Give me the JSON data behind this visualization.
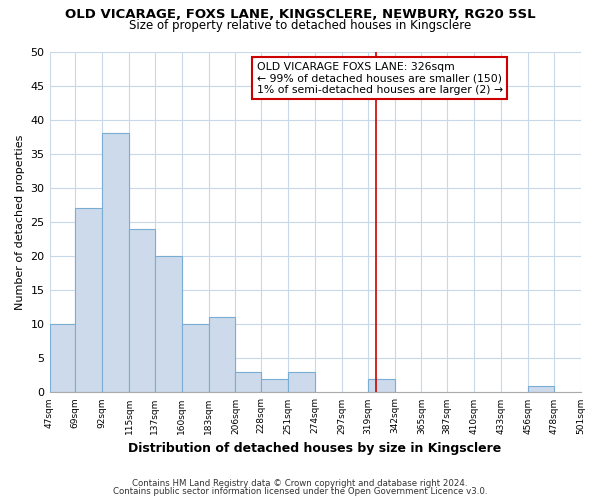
{
  "title1": "OLD VICARAGE, FOXS LANE, KINGSCLERE, NEWBURY, RG20 5SL",
  "title2": "Size of property relative to detached houses in Kingsclere",
  "xlabel": "Distribution of detached houses by size in Kingsclere",
  "ylabel": "Number of detached properties",
  "bar_edges": [
    47,
    69,
    92,
    115,
    137,
    160,
    183,
    206,
    228,
    251,
    274,
    297,
    319,
    342,
    365,
    387,
    410,
    433,
    456,
    478,
    501
  ],
  "bar_heights": [
    10,
    27,
    38,
    24,
    20,
    10,
    11,
    3,
    2,
    3,
    0,
    0,
    2,
    0,
    0,
    0,
    0,
    0,
    1,
    0
  ],
  "bar_color": "#cddaeb",
  "bar_edgecolor": "#7aadd4",
  "vline_x": 326,
  "vline_color": "#cc0000",
  "annotation_title": "OLD VICARAGE FOXS LANE: 326sqm",
  "annotation_line1": "← 99% of detached houses are smaller (150)",
  "annotation_line2": "1% of semi-detached houses are larger (2) →",
  "ylim": [
    0,
    50
  ],
  "yticks": [
    0,
    5,
    10,
    15,
    20,
    25,
    30,
    35,
    40,
    45,
    50
  ],
  "tick_labels": [
    "47sqm",
    "69sqm",
    "92sqm",
    "115sqm",
    "137sqm",
    "160sqm",
    "183sqm",
    "206sqm",
    "228sqm",
    "251sqm",
    "274sqm",
    "297sqm",
    "319sqm",
    "342sqm",
    "365sqm",
    "387sqm",
    "410sqm",
    "433sqm",
    "456sqm",
    "478sqm",
    "501sqm"
  ],
  "footnote1": "Contains HM Land Registry data © Crown copyright and database right 2024.",
  "footnote2": "Contains public sector information licensed under the Open Government Licence v3.0.",
  "bg_color": "#ffffff",
  "plot_bg_color": "#ffffff",
  "grid_color": "#c8d8e8",
  "annotation_box_edgecolor": "#cc0000",
  "annotation_box_facecolor": "#ffffff"
}
